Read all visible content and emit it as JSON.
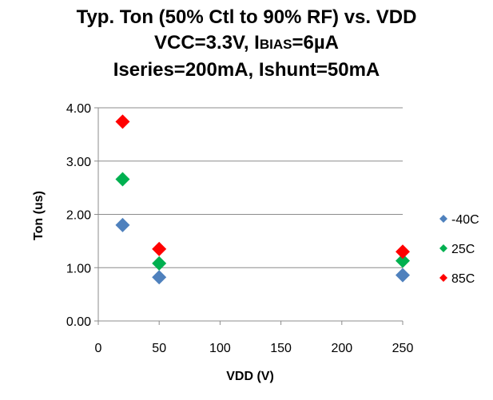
{
  "chart_data": {
    "type": "scatter",
    "title": {
      "line1": "Typ. Ton (50% Ctl to 90% RF) vs. VDD",
      "line2_pre": "VCC=3.3V, I",
      "line2_sub": "BIAS",
      "line2_post": "=6µA",
      "line3": "Iseries=200mA, Ishunt=50mA"
    },
    "xlabel": "VDD (V)",
    "ylabel": "Ton (us)",
    "xlim": [
      0,
      250
    ],
    "ylim": [
      0,
      4
    ],
    "xticks": [
      0,
      50,
      100,
      150,
      200,
      250
    ],
    "yticks": [
      0,
      1,
      2,
      3,
      4
    ],
    "xtick_labels": [
      "0",
      "50",
      "100",
      "150",
      "200",
      "250"
    ],
    "ytick_labels": [
      "0.00",
      "1.00",
      "2.00",
      "3.00",
      "4.00"
    ],
    "grid": "horizontal",
    "legend_position": "right",
    "x": [
      20,
      50,
      250
    ],
    "series": [
      {
        "name": "-40C",
        "color": "#4F81BD",
        "values": [
          1.8,
          0.82,
          0.86
        ]
      },
      {
        "name": "25C",
        "color": "#00B050",
        "values": [
          2.66,
          1.08,
          1.13
        ]
      },
      {
        "name": "85C",
        "color": "#FF0000",
        "values": [
          3.74,
          1.35,
          1.3
        ]
      }
    ]
  }
}
